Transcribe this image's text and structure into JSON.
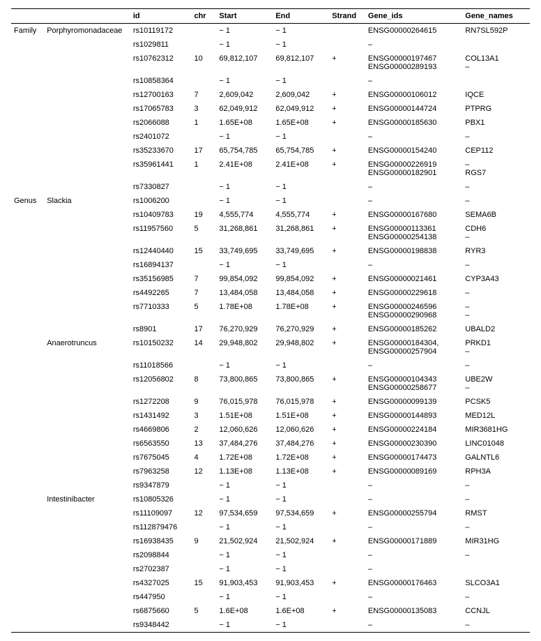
{
  "headers": {
    "level": "",
    "taxon": "",
    "id": "id",
    "chr": "chr",
    "start": "Start",
    "end": "End",
    "strand": "Strand",
    "gene_ids": "Gene_ids",
    "gene_names": "Gene_names"
  },
  "rows": [
    {
      "level": "Family",
      "taxon": "Porphyromonadaceae",
      "id": "rs10119172",
      "chr": "",
      "start": "− 1",
      "end": "− 1",
      "strand": "",
      "gene_ids": "ENSG00000264615",
      "gene_names": "RN7SL592P"
    },
    {
      "level": "",
      "taxon": "",
      "id": "rs1029811",
      "chr": "",
      "start": "− 1",
      "end": "− 1",
      "strand": "",
      "gene_ids": "–",
      "gene_names": ""
    },
    {
      "level": "",
      "taxon": "",
      "id": "rs10762312",
      "chr": "10",
      "start": "69,812,107",
      "end": "69,812,107",
      "strand": "+",
      "gene_ids": "ENSG00000197467\nENSG00000289193",
      "gene_names": "COL13A1\n–"
    },
    {
      "level": "",
      "taxon": "",
      "id": "rs10858364",
      "chr": "",
      "start": "− 1",
      "end": "− 1",
      "strand": "",
      "gene_ids": "–",
      "gene_names": ""
    },
    {
      "level": "",
      "taxon": "",
      "id": "rs12700163",
      "chr": "7",
      "start": "2,609,042",
      "end": "2,609,042",
      "strand": "+",
      "gene_ids": "ENSG00000106012",
      "gene_names": "IQCE"
    },
    {
      "level": "",
      "taxon": "",
      "id": "rs17065783",
      "chr": "3",
      "start": "62,049,912",
      "end": "62,049,912",
      "strand": "+",
      "gene_ids": "ENSG00000144724",
      "gene_names": "PTPRG"
    },
    {
      "level": "",
      "taxon": "",
      "id": "rs2066088",
      "chr": "1",
      "start": "1.65E+08",
      "end": "1.65E+08",
      "strand": "+",
      "gene_ids": "ENSG00000185630",
      "gene_names": "PBX1"
    },
    {
      "level": "",
      "taxon": "",
      "id": "rs2401072",
      "chr": "",
      "start": "− 1",
      "end": "− 1",
      "strand": "",
      "gene_ids": "–",
      "gene_names": "–"
    },
    {
      "level": "",
      "taxon": "",
      "id": "rs35233670",
      "chr": "17",
      "start": "65,754,785",
      "end": "65,754,785",
      "strand": "+",
      "gene_ids": "ENSG00000154240",
      "gene_names": "CEP112"
    },
    {
      "level": "",
      "taxon": "",
      "id": "rs35961441",
      "chr": "1",
      "start": "2.41E+08",
      "end": "2.41E+08",
      "strand": "+",
      "gene_ids": "ENSG00000226919\nENSG00000182901",
      "gene_names": "–\nRGS7"
    },
    {
      "level": "",
      "taxon": "",
      "id": "rs7330827",
      "chr": "",
      "start": "− 1",
      "end": "− 1",
      "strand": "",
      "gene_ids": "–",
      "gene_names": "–"
    },
    {
      "level": "Genus",
      "taxon": "Slackia",
      "id": "rs1006200",
      "chr": "",
      "start": "− 1",
      "end": "− 1",
      "strand": "",
      "gene_ids": "–",
      "gene_names": "–"
    },
    {
      "level": "",
      "taxon": "",
      "id": "rs10409783",
      "chr": "19",
      "start": "4,555,774",
      "end": "4,555,774",
      "strand": "+",
      "gene_ids": "ENSG00000167680",
      "gene_names": "SEMA6B"
    },
    {
      "level": "",
      "taxon": "",
      "id": "rs11957560",
      "chr": "5",
      "start": "31,268,861",
      "end": "31,268,861",
      "strand": "+",
      "gene_ids": "ENSG00000113361\nENSG00000254138",
      "gene_names": "CDH6\n–"
    },
    {
      "level": "",
      "taxon": "",
      "id": "rs12440440",
      "chr": "15",
      "start": "33,749,695",
      "end": "33,749,695",
      "strand": "+",
      "gene_ids": "ENSG00000198838",
      "gene_names": "RYR3"
    },
    {
      "level": "",
      "taxon": "",
      "id": "rs16894137",
      "chr": "",
      "start": "− 1",
      "end": "− 1",
      "strand": "",
      "gene_ids": "–",
      "gene_names": "–"
    },
    {
      "level": "",
      "taxon": "",
      "id": "rs35156985",
      "chr": "7",
      "start": "99,854,092",
      "end": "99,854,092",
      "strand": "+",
      "gene_ids": "ENSG00000021461",
      "gene_names": "CYP3A43"
    },
    {
      "level": "",
      "taxon": "",
      "id": "rs4492265",
      "chr": "7",
      "start": "13,484,058",
      "end": "13,484,058",
      "strand": "+",
      "gene_ids": "ENSG00000229618",
      "gene_names": "–"
    },
    {
      "level": "",
      "taxon": "",
      "id": "rs7710333",
      "chr": "5",
      "start": "1.78E+08",
      "end": "1.78E+08",
      "strand": "+",
      "gene_ids": "ENSG00000246596\nENSG00000290968",
      "gene_names": "–\n–"
    },
    {
      "level": "",
      "taxon": "",
      "id": "rs8901",
      "chr": "17",
      "start": "76,270,929",
      "end": "76,270,929",
      "strand": "+",
      "gene_ids": "ENSG00000185262",
      "gene_names": "UBALD2"
    },
    {
      "level": "",
      "taxon": "Anaerotruncus",
      "id": "rs10150232",
      "chr": "14",
      "start": "29,948,802",
      "end": "29,948,802",
      "strand": "+",
      "gene_ids": "ENSG00000184304,\nENSG00000257904",
      "gene_names": "PRKD1\n–"
    },
    {
      "level": "",
      "taxon": "",
      "id": "rs11018566",
      "chr": "",
      "start": "− 1",
      "end": "− 1",
      "strand": "",
      "gene_ids": "–",
      "gene_names": "–"
    },
    {
      "level": "",
      "taxon": "",
      "id": "rs12056802",
      "chr": "8",
      "start": "73,800,865",
      "end": "73,800,865",
      "strand": "+",
      "gene_ids": "ENSG00000104343\nENSG00000258677",
      "gene_names": "UBE2W\n–"
    },
    {
      "level": "",
      "taxon": "",
      "id": "rs1272208",
      "chr": "9",
      "start": "76,015,978",
      "end": "76,015,978",
      "strand": "+",
      "gene_ids": "ENSG00000099139",
      "gene_names": "PCSK5"
    },
    {
      "level": "",
      "taxon": "",
      "id": "rs1431492",
      "chr": "3",
      "start": "1.51E+08",
      "end": "1.51E+08",
      "strand": "+",
      "gene_ids": "ENSG00000144893",
      "gene_names": "MED12L"
    },
    {
      "level": "",
      "taxon": "",
      "id": "rs4669806",
      "chr": "2",
      "start": "12,060,626",
      "end": "12,060,626",
      "strand": "+",
      "gene_ids": "ENSG00000224184",
      "gene_names": "MIR3681HG"
    },
    {
      "level": "",
      "taxon": "",
      "id": "rs6563550",
      "chr": "13",
      "start": "37,484,276",
      "end": "37,484,276",
      "strand": "+",
      "gene_ids": "ENSG00000230390",
      "gene_names": "LINC01048"
    },
    {
      "level": "",
      "taxon": "",
      "id": "rs7675045",
      "chr": "4",
      "start": "1.72E+08",
      "end": "1.72E+08",
      "strand": "+",
      "gene_ids": "ENSG00000174473",
      "gene_names": "GALNTL6"
    },
    {
      "level": "",
      "taxon": "",
      "id": "rs7963258",
      "chr": "12",
      "start": "1.13E+08",
      "end": "1.13E+08",
      "strand": "+",
      "gene_ids": "ENSG00000089169",
      "gene_names": "RPH3A"
    },
    {
      "level": "",
      "taxon": "",
      "id": "rs9347879",
      "chr": "",
      "start": "− 1",
      "end": "− 1",
      "strand": "",
      "gene_ids": "–",
      "gene_names": "–"
    },
    {
      "level": "",
      "taxon": "Intestinibacter",
      "id": "rs10805326",
      "chr": "",
      "start": "− 1",
      "end": "− 1",
      "strand": "",
      "gene_ids": "–",
      "gene_names": "–"
    },
    {
      "level": "",
      "taxon": "",
      "id": "rs11109097",
      "chr": "12",
      "start": "97,534,659",
      "end": "97,534,659",
      "strand": "+",
      "gene_ids": "ENSG00000255794",
      "gene_names": "RMST"
    },
    {
      "level": "",
      "taxon": "",
      "id": "rs112879476",
      "chr": "",
      "start": "− 1",
      "end": "− 1",
      "strand": "",
      "gene_ids": "–",
      "gene_names": "–"
    },
    {
      "level": "",
      "taxon": "",
      "id": "rs16938435",
      "chr": "9",
      "start": "21,502,924",
      "end": "21,502,924",
      "strand": "+",
      "gene_ids": "ENSG00000171889",
      "gene_names": "MIR31HG"
    },
    {
      "level": "",
      "taxon": "",
      "id": "rs2098844",
      "chr": "",
      "start": "− 1",
      "end": "− 1",
      "strand": "",
      "gene_ids": "–",
      "gene_names": "–"
    },
    {
      "level": "",
      "taxon": "",
      "id": "rs2702387",
      "chr": "",
      "start": "− 1",
      "end": "− 1",
      "strand": "",
      "gene_ids": "–",
      "gene_names": ""
    },
    {
      "level": "",
      "taxon": "",
      "id": "rs4327025",
      "chr": "15",
      "start": "91,903,453",
      "end": "91,903,453",
      "strand": "+",
      "gene_ids": "ENSG00000176463",
      "gene_names": "SLCO3A1"
    },
    {
      "level": "",
      "taxon": "",
      "id": "rs447950",
      "chr": "",
      "start": "− 1",
      "end": "− 1",
      "strand": "",
      "gene_ids": "–",
      "gene_names": "–"
    },
    {
      "level": "",
      "taxon": "",
      "id": "rs6875660",
      "chr": "5",
      "start": "1.6E+08",
      "end": "1.6E+08",
      "strand": "+",
      "gene_ids": "ENSG00000135083",
      "gene_names": "CCNJL"
    },
    {
      "level": "",
      "taxon": "",
      "id": "rs9348442",
      "chr": "",
      "start": "− 1",
      "end": "− 1",
      "strand": "",
      "gene_ids": "–",
      "gene_names": "–"
    }
  ]
}
